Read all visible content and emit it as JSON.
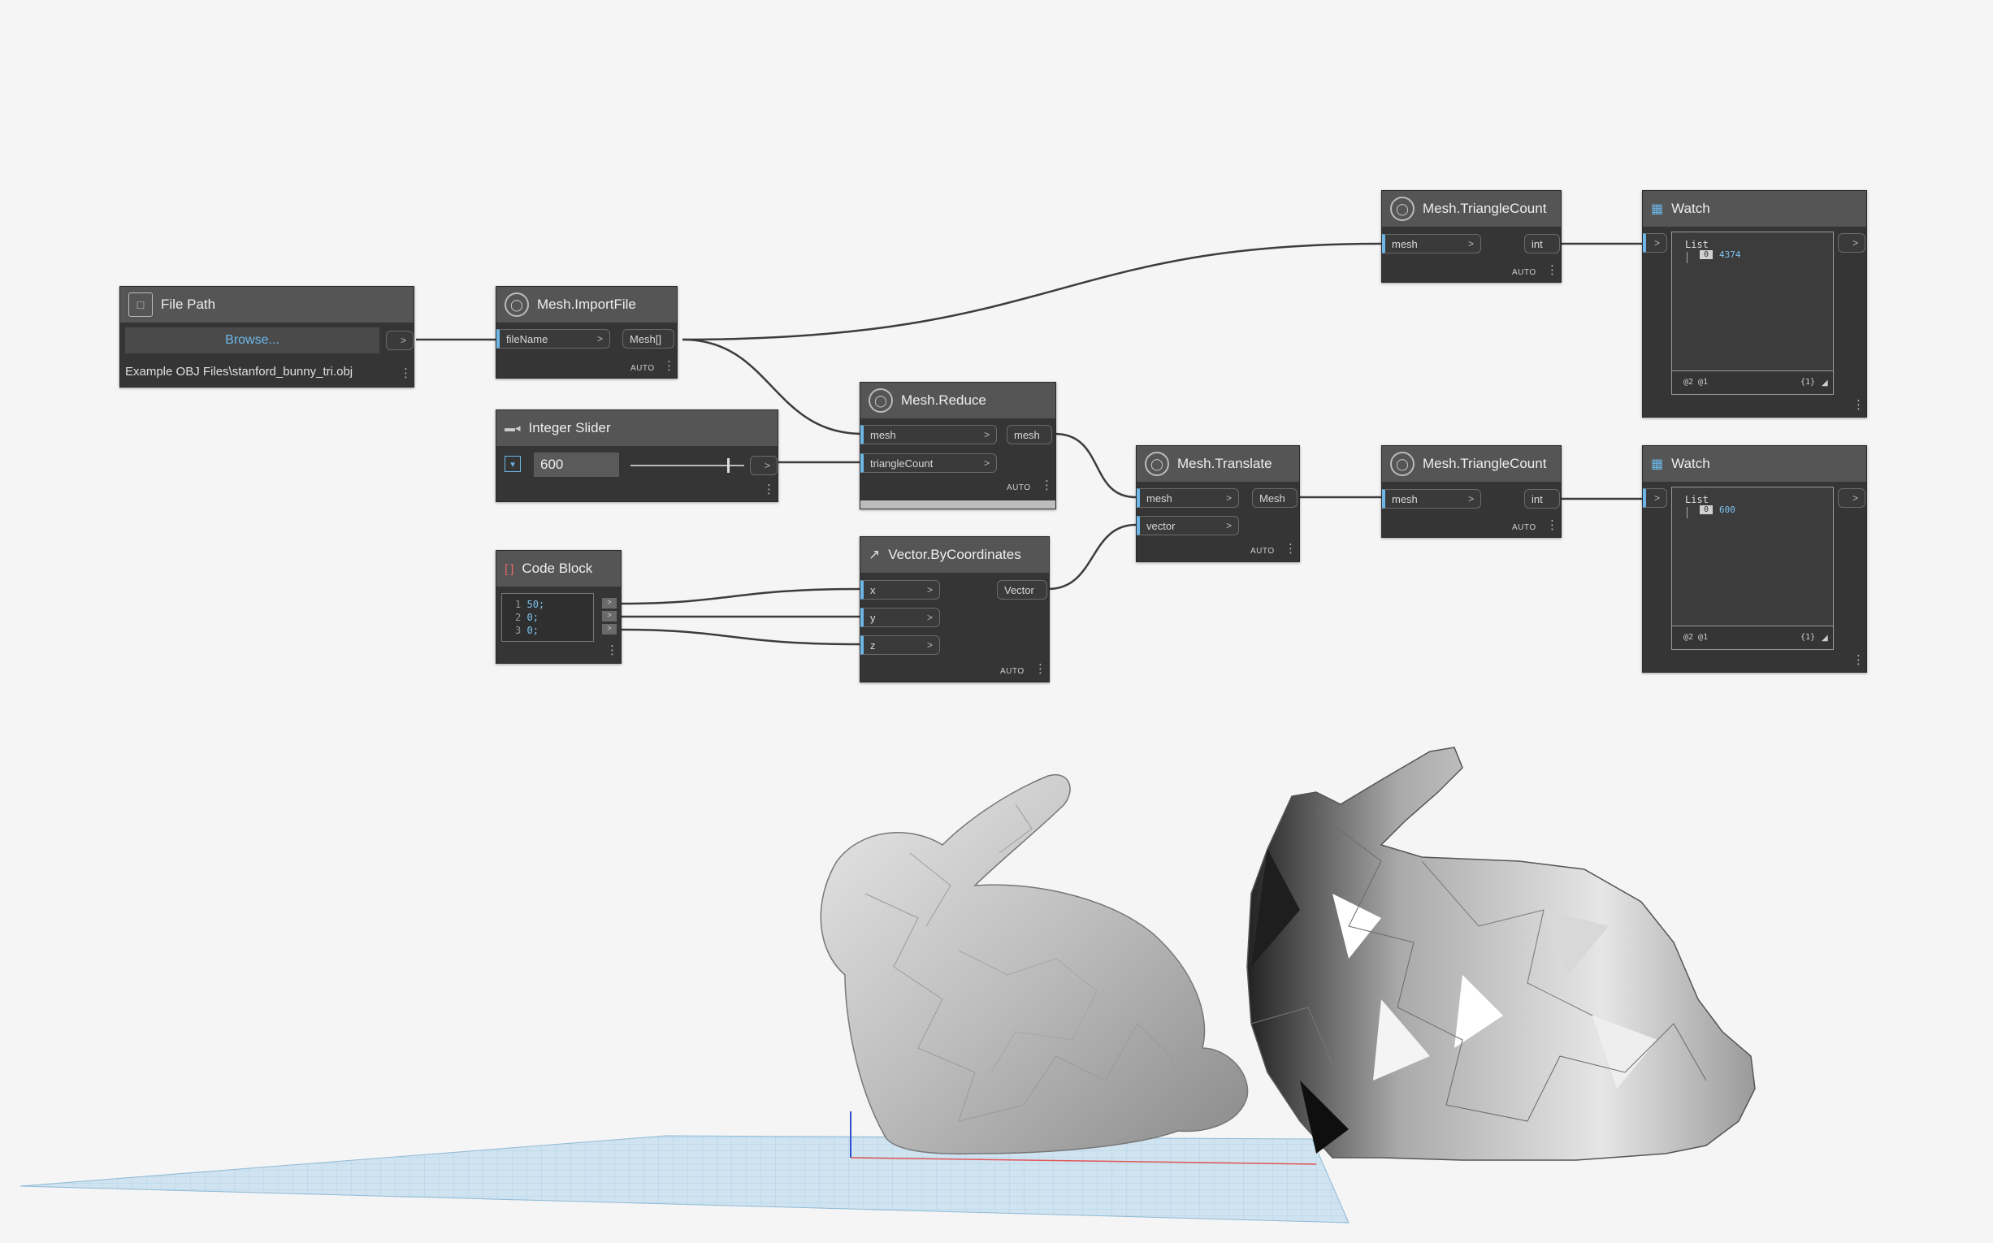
{
  "nodes": {
    "file_path": {
      "title": "File Path",
      "browse_label": "Browse...",
      "path_value": "Example OBJ Files\\stanford_bunny_tri.obj"
    },
    "import_file": {
      "title": "Mesh.ImportFile",
      "input": "fileName",
      "output": "Mesh[]",
      "lacing": "AUTO"
    },
    "integer_slider": {
      "title": "Integer Slider",
      "value": "600"
    },
    "code_block": {
      "title": "Code Block",
      "lines": [
        {
          "num": "1",
          "code": "50;"
        },
        {
          "num": "2",
          "code": "0;"
        },
        {
          "num": "3",
          "code": "0;"
        }
      ]
    },
    "mesh_reduce": {
      "title": "Mesh.Reduce",
      "inputs": [
        "mesh",
        "triangleCount"
      ],
      "output": "mesh",
      "lacing": "AUTO"
    },
    "vector_by_coords": {
      "title": "Vector.ByCoordinates",
      "inputs": [
        "x",
        "y",
        "z"
      ],
      "output": "Vector",
      "lacing": "AUTO"
    },
    "mesh_translate": {
      "title": "Mesh.Translate",
      "inputs": [
        "mesh",
        "vector"
      ],
      "output": "Mesh",
      "lacing": "AUTO"
    },
    "triangle_count_top": {
      "title": "Mesh.TriangleCount",
      "input": "mesh",
      "output": "int",
      "lacing": "AUTO"
    },
    "triangle_count_bottom": {
      "title": "Mesh.TriangleCount",
      "input": "mesh",
      "output": "int",
      "lacing": "AUTO"
    },
    "watch_top": {
      "title": "Watch",
      "list_label": "List",
      "index": "0",
      "value": "4374",
      "levels": "@2 @1",
      "count": "{1}"
    },
    "watch_bottom": {
      "title": "Watch",
      "list_label": "List",
      "index": "0",
      "value": "600",
      "levels": "@2 @1",
      "count": "{1}"
    }
  },
  "colors": {
    "canvas_bg": "#f5f5f5",
    "node_body": "#353535",
    "node_header": "#555555",
    "input_accent": "#6cb7e8",
    "wire": "#3c3c3c",
    "grid": "#a9cfe6"
  },
  "icons": [
    "file-icon",
    "dynamo-node-icon",
    "slider-icon",
    "code-block-icon",
    "vector-icon",
    "watch-icon"
  ]
}
